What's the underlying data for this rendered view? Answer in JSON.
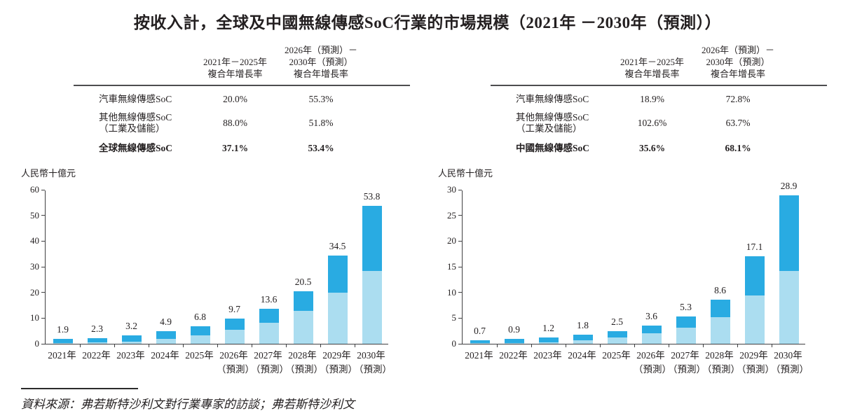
{
  "page": {
    "title": "按收入計，全球及中國無線傳感SoC行業的市場規模（2021年 －2030年（預測））",
    "source": "資料來源：弗若斯特沙利文對行業專家的訪談；弗若斯特沙利文"
  },
  "colors": {
    "auto_soc": "#29abe2",
    "other_soc": "#abddf0",
    "axis": "#404042",
    "rule": "#4d4d4f"
  },
  "panels": [
    {
      "id": "global",
      "table": {
        "col1_header": "2021年－2025年\n複合年增長率",
        "col2_header": "2026年（預測）－\n2030年（預測）\n複合年增長率",
        "rows": [
          {
            "swatch": "auto_soc",
            "label": "汽車無線傳感SoC",
            "v1": "20.0%",
            "v2": "55.3%"
          },
          {
            "swatch": "other_soc",
            "label": "其他無線傳感SoC\n（工業及儲能）",
            "v1": "88.0%",
            "v2": "51.8%"
          },
          {
            "swatch": "",
            "label": "全球無線傳感SoC",
            "v1": "37.1%",
            "v2": "53.4%"
          }
        ]
      }
    },
    {
      "id": "china",
      "table": {
        "col1_header": "2021年－2025年\n複合年增長率",
        "col2_header": "2026年（預測）－\n2030年（預測）\n複合年增長率",
        "rows": [
          {
            "swatch": "auto_soc",
            "label": "汽車無線傳感SoC",
            "v1": "18.9%",
            "v2": "72.8%"
          },
          {
            "swatch": "other_soc",
            "label": "其他無線傳感SoC\n（工業及儲能）",
            "v1": "102.6%",
            "v2": "63.7%"
          },
          {
            "swatch": "",
            "label": "中國無線傳感SoC",
            "v1": "35.6%",
            "v2": "68.1%"
          }
        ]
      }
    }
  ],
  "chart_data": [
    {
      "type": "bar",
      "stacked": true,
      "title": "全球無線傳感SoC",
      "ylabel": "人民幣十億元",
      "ylim": [
        0,
        60
      ],
      "yticks": [
        0,
        10,
        20,
        30,
        40,
        50,
        60
      ],
      "grid": false,
      "legend_position": "table-above",
      "categories": [
        "2021年",
        "2022年",
        "2023年",
        "2024年",
        "2025年",
        "2026年\n（預測）",
        "2027年\n（預測）",
        "2028年\n（預測）",
        "2029年\n（預測）",
        "2030年\n（預測）"
      ],
      "totals": [
        1.9,
        2.3,
        3.2,
        4.9,
        6.8,
        9.7,
        13.6,
        20.5,
        34.5,
        53.8
      ],
      "total_labels": [
        "1.9",
        "2.3",
        "3.2",
        "4.9",
        "6.8",
        "9.7",
        "13.6",
        "20.5",
        "34.5",
        "53.8"
      ],
      "series": [
        {
          "name": "其他無線傳感SoC（工業及儲能）",
          "color_key": "other_soc",
          "values": [
            0.3,
            0.5,
            0.9,
            2.0,
            3.4,
            5.4,
            8.2,
            12.8,
            19.9,
            28.5
          ]
        },
        {
          "name": "汽車無線傳感SoC",
          "color_key": "auto_soc",
          "values": [
            1.6,
            1.8,
            2.3,
            2.9,
            3.4,
            4.3,
            5.4,
            7.7,
            14.6,
            25.3
          ]
        }
      ]
    },
    {
      "type": "bar",
      "stacked": true,
      "title": "中國無線傳感SoC",
      "ylabel": "人民幣十億元",
      "ylim": [
        0,
        30
      ],
      "yticks": [
        0,
        5,
        10,
        15,
        20,
        25,
        30
      ],
      "grid": false,
      "legend_position": "table-above",
      "categories": [
        "2021年",
        "2022年",
        "2023年",
        "2024年",
        "2025年",
        "2026年\n（預測）",
        "2027年\n（預測）",
        "2028年\n（預測）",
        "2029年\n（預測）",
        "2030年\n（預測）"
      ],
      "totals": [
        0.7,
        0.9,
        1.2,
        1.8,
        2.5,
        3.6,
        5.3,
        8.6,
        17.1,
        28.9
      ],
      "total_labels": [
        "0.7",
        "0.9",
        "1.2",
        "1.8",
        "2.5",
        "3.6",
        "5.3",
        "8.6",
        "17.1",
        "28.9"
      ],
      "series": [
        {
          "name": "其他無線傳感SoC（工業及儲能）",
          "color_key": "other_soc",
          "values": [
            0.1,
            0.1,
            0.3,
            0.7,
            1.2,
            2.0,
            3.2,
            5.2,
            9.4,
            14.2
          ]
        },
        {
          "name": "汽車無線傳感SoC",
          "color_key": "auto_soc",
          "values": [
            0.6,
            0.8,
            0.9,
            1.1,
            1.3,
            1.6,
            2.1,
            3.4,
            7.7,
            14.7
          ]
        }
      ]
    }
  ]
}
